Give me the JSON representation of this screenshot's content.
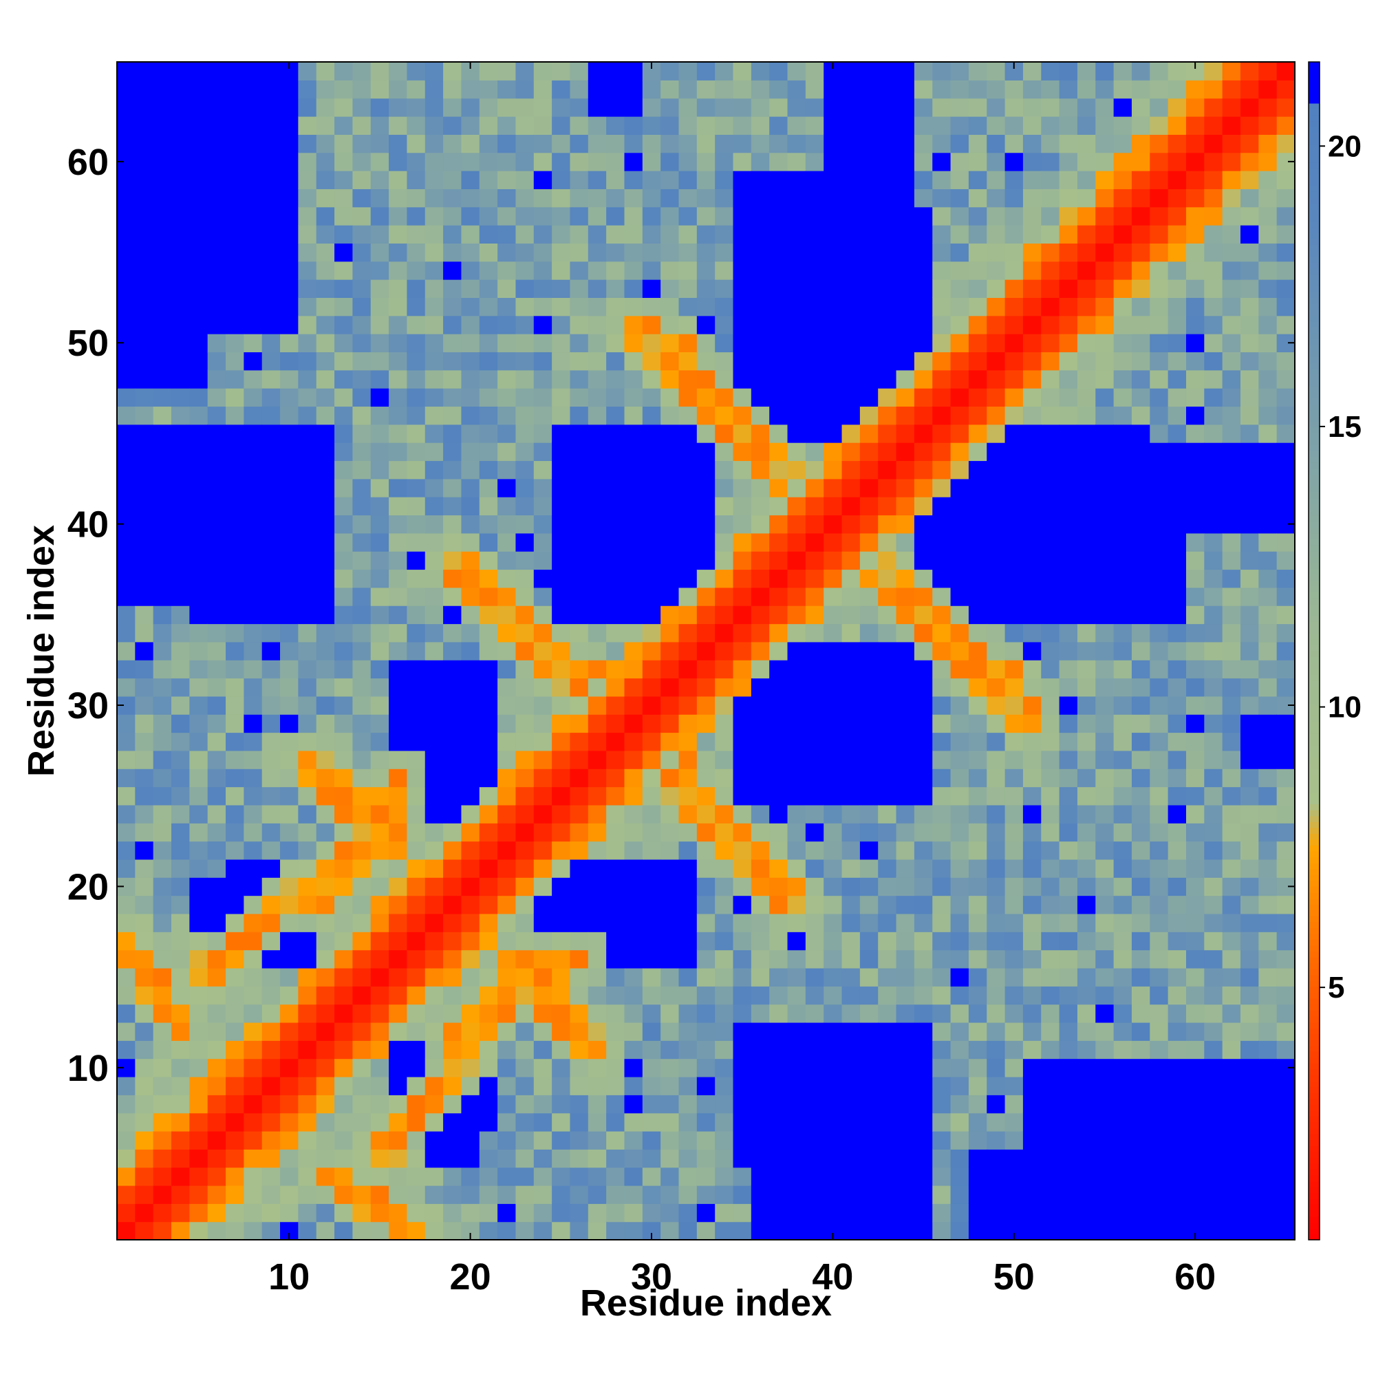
{
  "chart_data": {
    "type": "heatmap",
    "title": "",
    "xlabel": "Residue index",
    "ylabel": "Residue index",
    "n": 65,
    "xlim": [
      0.5,
      65.5
    ],
    "ylim": [
      0.5,
      65.5
    ],
    "x_ticks": [
      10,
      20,
      30,
      40,
      50,
      60
    ],
    "y_ticks": [
      10,
      20,
      30,
      40,
      50,
      60
    ],
    "colorbar": {
      "ticks": [
        5,
        10,
        15,
        20
      ],
      "range": [
        0.5,
        21.5
      ],
      "stops": [
        {
          "value": 0.5,
          "color": "#ff0000"
        },
        {
          "value": 3.5,
          "color": "#ff3a00"
        },
        {
          "value": 5.5,
          "color": "#ff6a00"
        },
        {
          "value": 7.5,
          "color": "#ffa500"
        },
        {
          "value": 8.3,
          "color": "#a8c08a"
        },
        {
          "value": 11.5,
          "color": "#9cb894"
        },
        {
          "value": 14.5,
          "color": "#7fa3a8"
        },
        {
          "value": 18.5,
          "color": "#5a87bd"
        },
        {
          "value": 20.8,
          "color": "#5080c0"
        },
        {
          "value": 21.5,
          "color": "#0000ff"
        }
      ]
    },
    "structure": {
      "description_values": "Pairwise residue distance map (symmetric). Near-diagonal values ~1-4, i±3/4 off-diagonal 5-8 (helix-like), helical-turn anti-diagonal contacts 6-8, distant blocks >21.",
      "diagonal_band": [
        {
          "offset": 0,
          "value": 1.0
        },
        {
          "offset": 1,
          "value": 2.5
        },
        {
          "offset": 2,
          "value": 3.8
        },
        {
          "offset": 3,
          "value": 5.8
        },
        {
          "offset": 4,
          "value": 7.0
        }
      ],
      "far_blocks": [
        {
          "x": [
            5,
            12
          ],
          "y": [
            35,
            44
          ]
        },
        {
          "x": [
            25,
            33
          ],
          "y": [
            35,
            44
          ]
        },
        {
          "x": [
            47,
            59
          ],
          "y": [
            35,
            44
          ]
        },
        {
          "x": [
            36,
            45
          ],
          "y": [
            45,
            56
          ]
        },
        {
          "x": [
            36,
            45
          ],
          "y": [
            25,
            32
          ]
        },
        {
          "x": [
            16,
            21
          ],
          "y": [
            25,
            32
          ]
        },
        {
          "x": [
            5,
            11
          ],
          "y": [
            16,
            20
          ]
        },
        {
          "x": [
            24,
            31
          ],
          "y": [
            16,
            20
          ]
        },
        {
          "x": [
            36,
            45
          ],
          "y": [
            1,
            12
          ]
        },
        {
          "x": [
            18,
            21
          ],
          "y": [
            7,
            12
          ]
        },
        {
          "x": [
            51,
            63
          ],
          "y": [
            1,
            10
          ]
        },
        {
          "x": [
            1,
            5
          ],
          "y": [
            48,
            65
          ]
        },
        {
          "x": [
            6,
            10
          ],
          "y": [
            58,
            65
          ]
        },
        {
          "x": [
            40,
            44
          ],
          "y": [
            58,
            65
          ]
        },
        {
          "x": [
            27,
            29
          ],
          "y": [
            63,
            65
          ]
        }
      ],
      "anti_diagonal_contacts": [
        {
          "from": [
            19,
            38
          ],
          "to": [
            27,
            31
          ]
        },
        {
          "from": [
            5,
            15
          ],
          "to": [
            16,
            24
          ]
        },
        {
          "from": [
            19,
            12
          ],
          "to": [
            26,
            16
          ]
        },
        {
          "from": [
            31,
            50
          ],
          "to": [
            38,
            42
          ]
        },
        {
          "from": [
            42,
            38
          ],
          "to": [
            51,
            29
          ]
        },
        {
          "from": [
            31,
            26
          ],
          "to": [
            38,
            19
          ]
        },
        {
          "from": [
            11,
            27
          ],
          "to": [
            16,
            22
          ]
        },
        {
          "from": [
            12,
            4
          ],
          "to": [
            17,
            1
          ]
        }
      ]
    }
  }
}
